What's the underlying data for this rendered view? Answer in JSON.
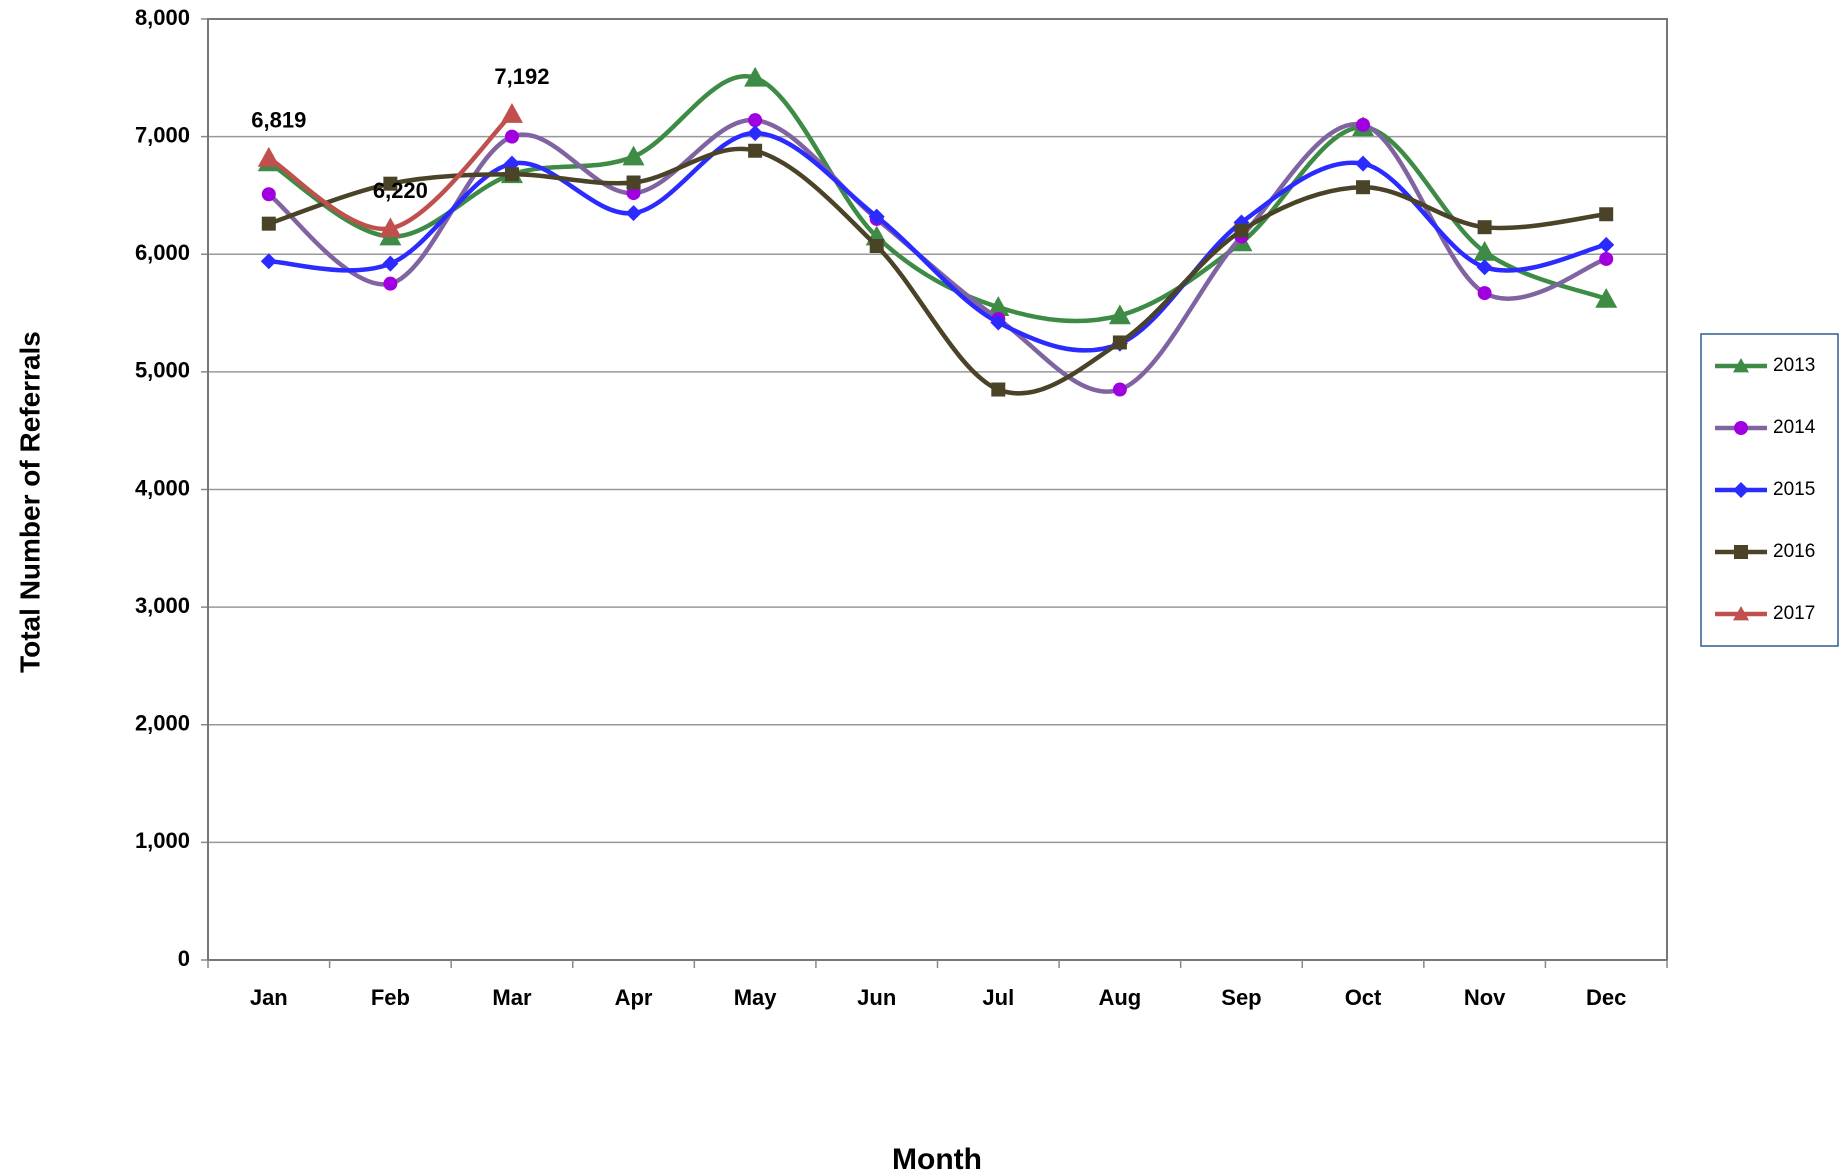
{
  "chart_data": {
    "type": "line",
    "y_label": "Total Number of Referrals",
    "x_label": "Month",
    "categories": [
      "Jan",
      "Feb",
      "Mar",
      "Apr",
      "May",
      "Jun",
      "Jul",
      "Aug",
      "Sep",
      "Oct",
      "Nov",
      "Dec"
    ],
    "series": [
      {
        "name": "2013",
        "color": "#3d8b45",
        "marker": "triangle",
        "values": [
          6780,
          6150,
          6680,
          6830,
          7500,
          6150,
          5550,
          5480,
          6100,
          7080,
          6020,
          5620
        ]
      },
      {
        "name": "2014",
        "color": "#8064a2",
        "marker_color": "#a000e0",
        "marker": "circle",
        "values": [
          6510,
          5750,
          7000,
          6520,
          7140,
          6300,
          5450,
          4850,
          6150,
          7100,
          5670,
          5960
        ]
      },
      {
        "name": "2015",
        "color": "#2b2bff",
        "marker": "diamond",
        "values": [
          5940,
          5920,
          6770,
          6350,
          7030,
          6320,
          5420,
          5240,
          6270,
          6770,
          5890,
          6080
        ]
      },
      {
        "name": "2016",
        "color": "#4a4328",
        "marker": "square",
        "values": [
          6260,
          6600,
          6680,
          6610,
          6880,
          6070,
          4850,
          5250,
          6200,
          6570,
          6230,
          6340
        ]
      },
      {
        "name": "2017",
        "color": "#c0504d",
        "marker": "triangle",
        "values": [
          6819,
          6220,
          7192,
          null,
          null,
          null,
          null,
          null,
          null,
          null,
          null,
          null
        ],
        "value_labels": [
          "6,819",
          "6,220",
          "7,192",
          null,
          null,
          null,
          null,
          null,
          null,
          null,
          null,
          null
        ]
      }
    ],
    "ylim": [
      0,
      8000
    ],
    "yticks": [
      0,
      {
        "value": 1000,
        "label": "1,000"
      },
      {
        "value": 2000,
        "label": "2,000"
      },
      {
        "value": 3000,
        "label": "3,000"
      },
      {
        "value": 4000,
        "label": "4,000"
      },
      {
        "value": 5000,
        "label": "5,000"
      },
      {
        "value": 6000,
        "label": "6,000"
      },
      {
        "value": 7000,
        "label": "7,000"
      },
      {
        "value": 8000,
        "label": "8,000"
      }
    ],
    "grid": true,
    "legend": "right"
  }
}
